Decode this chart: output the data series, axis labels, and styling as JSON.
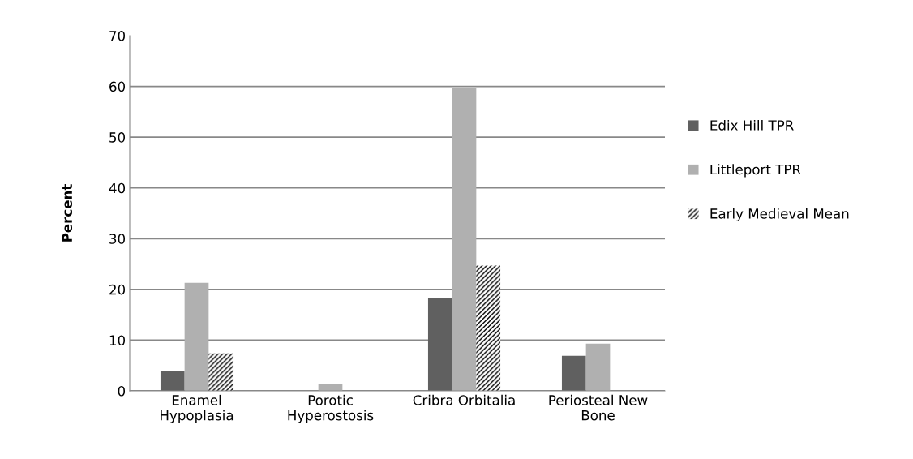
{
  "chart_data": {
    "type": "bar",
    "ylabel": "Percent",
    "categories": [
      "Enamel\nHypoplasia",
      "Porotic\nHyperostosis",
      "Cribra Orbitalia",
      "Periosteal New\nBone"
    ],
    "series": [
      {
        "name": "Edix Hill TPR",
        "color": "#606060",
        "values": [
          4.0,
          null,
          18.3,
          6.9
        ]
      },
      {
        "name": "Littleport TPR",
        "color": "#b0b0b0",
        "values": [
          21.3,
          1.3,
          59.6,
          9.3
        ]
      },
      {
        "name": "Early Medieval Mean",
        "color": "#000000",
        "values": [
          7.4,
          null,
          24.7,
          null
        ]
      }
    ],
    "ylim": [
      0,
      70
    ],
    "yticks": [
      0,
      10,
      20,
      30,
      40,
      50,
      60,
      70
    ],
    "grid": "y",
    "legend": "right"
  }
}
